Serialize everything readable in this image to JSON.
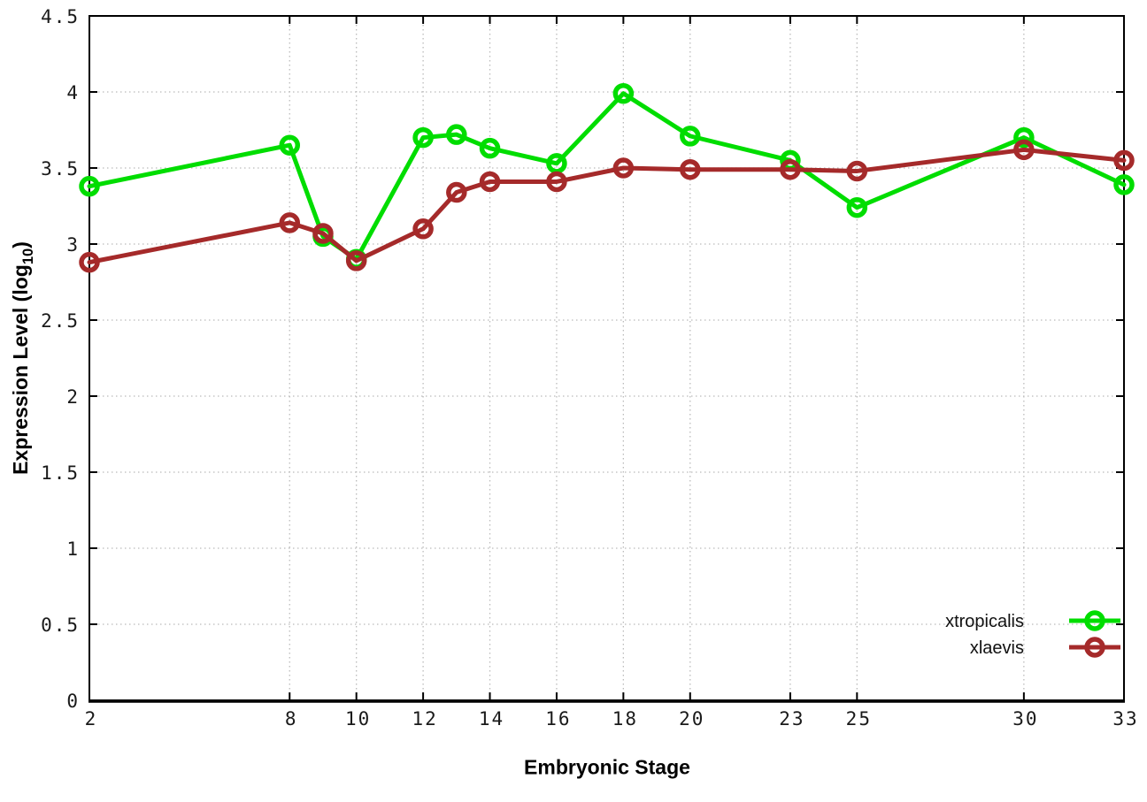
{
  "chart_data": {
    "type": "line",
    "title": "",
    "xlabel": "Embryonic Stage",
    "ylabel": "Expression Level (log10)",
    "x": [
      2,
      8,
      9,
      10,
      12,
      13,
      14,
      16,
      18,
      20,
      23,
      25,
      30,
      33
    ],
    "series": [
      {
        "name": "xtropicalis",
        "color": "#00dd00",
        "values": [
          3.38,
          3.65,
          3.05,
          2.9,
          3.7,
          3.72,
          3.63,
          3.53,
          3.99,
          3.71,
          3.55,
          3.24,
          3.7,
          3.39
        ]
      },
      {
        "name": "xlaevis",
        "color": "#a52a2a",
        "values": [
          2.88,
          3.14,
          3.07,
          2.89,
          3.1,
          3.34,
          3.41,
          3.41,
          3.5,
          3.49,
          3.49,
          3.48,
          3.62,
          3.55
        ]
      }
    ],
    "xlim": [
      2,
      33
    ],
    "ylim": [
      0,
      4.5
    ],
    "xticks": [
      2,
      8,
      10,
      12,
      14,
      16,
      18,
      20,
      23,
      25,
      30,
      33
    ],
    "yticks": [
      "0",
      "0.5",
      "1",
      "1.5",
      "2",
      "2.5",
      "3",
      "3.5",
      "4",
      "4.5"
    ],
    "grid": true,
    "legend_position": "bottom-right",
    "marker": "open-circle"
  },
  "labels": {
    "xlabel": "Embryonic Stage",
    "ylabel_main": "Expression Level (log",
    "ylabel_sub": "10",
    "ylabel_close": ")"
  },
  "colors": {
    "xtropicalis": "#00dd00",
    "xlaevis": "#a52a2a",
    "grid": "#bbbbbb",
    "axis": "#000000",
    "background": "#ffffff"
  }
}
